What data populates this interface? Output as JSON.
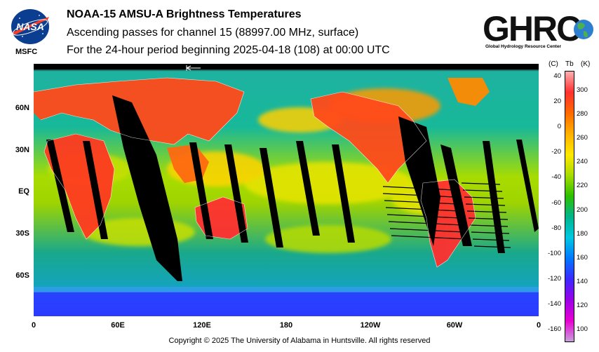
{
  "header": {
    "title": "NOAA-15 AMSU-A Brightness Temperatures",
    "subtitle_line1": "Ascending passes for channel 15 (88997.00 MHz, surface)",
    "subtitle_line2": "For the 24-hour period beginning 2025-04-18 (108) at 00:00 UTC"
  },
  "logos": {
    "nasa_text": "NASA",
    "msfc_label": "MSFC",
    "ghrc_text": "GHRC",
    "ghrc_subtitle": "Global Hydrology Resource Center"
  },
  "map": {
    "lat_labels": [
      "60N",
      "30N",
      "EQ",
      "30S",
      "60S"
    ],
    "lon_labels": [
      "0",
      "60E",
      "120E",
      "180",
      "120W",
      "60W",
      "0"
    ]
  },
  "colorbar": {
    "unit_c": "(C)",
    "unit_tb": "Tb",
    "unit_k": "(K)",
    "celsius_ticks": [
      "40",
      "20",
      "0",
      "-20",
      "-40",
      "-60",
      "-80",
      "-100",
      "-120",
      "-140",
      "-160"
    ],
    "kelvin_ticks": [
      "300",
      "280",
      "260",
      "240",
      "220",
      "200",
      "180",
      "160",
      "140",
      "120",
      "100"
    ],
    "colors": [
      "#ffb0b0",
      "#ff3030",
      "#ff6a00",
      "#ffb000",
      "#ffe800",
      "#a8dc00",
      "#2cc000",
      "#00b48c",
      "#00c8e0",
      "#0078ff",
      "#3c28ff",
      "#9a00e6",
      "#e600d2",
      "#c8a0dc"
    ]
  },
  "footer": {
    "copyright": "Copyright © 2025 The University of Alabama in Huntsville.  All rights reserved"
  }
}
